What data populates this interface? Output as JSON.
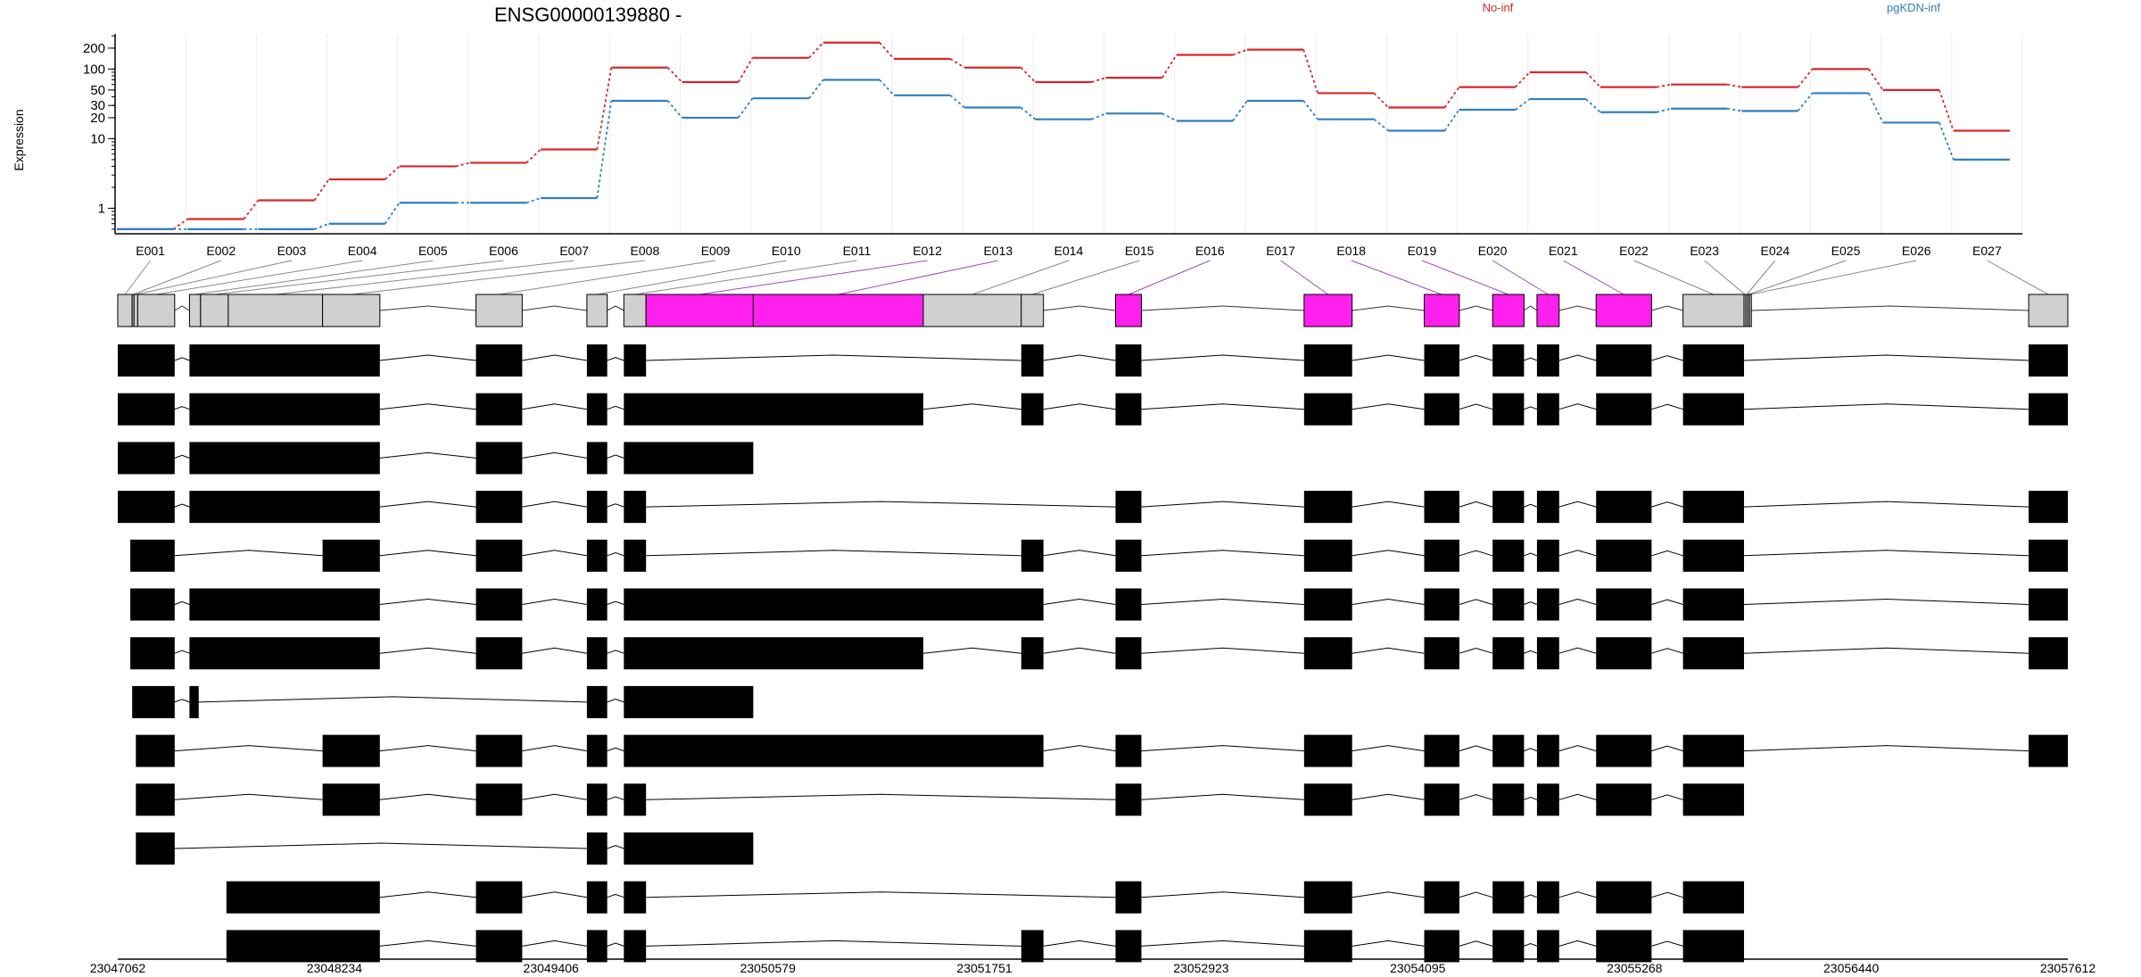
{
  "title": "ENSG00000139880 -",
  "ylabel": "Expression",
  "colors": {
    "No-inf": "#d62728",
    "pgKDN-inf": "#2f7fc1",
    "highlight": "#ff20ee",
    "exon_grey": "#d0d0d0",
    "connector_purple": "#a04ab8",
    "transcript": "#000000"
  },
  "chart_data": {
    "type": "line",
    "title": "ENSG00000139880 -",
    "xlabel": "",
    "ylabel": "Expression",
    "yscale": "log",
    "yticks": [
      1,
      10,
      20,
      30,
      50,
      100,
      200
    ],
    "grid": "vertical",
    "legend_position": "top-right",
    "categories": [
      "E001",
      "E002",
      "E003",
      "E004",
      "E005",
      "E006",
      "E007",
      "E008",
      "E009",
      "E010",
      "E011",
      "E012",
      "E013",
      "E014",
      "E015",
      "E016",
      "E017",
      "E018",
      "E019",
      "E020",
      "E021",
      "E022",
      "E023",
      "E024",
      "E025",
      "E026",
      "E027"
    ],
    "series": [
      {
        "name": "No-inf",
        "color": "#d62728",
        "values": [
          0.5,
          0.7,
          1.3,
          2.6,
          4.0,
          4.5,
          7,
          105,
          65,
          145,
          240,
          140,
          105,
          65,
          75,
          160,
          190,
          45,
          28,
          55,
          90,
          55,
          60,
          55,
          100,
          50,
          13
        ]
      },
      {
        "name": "pgKDN-inf",
        "color": "#2f7fc1",
        "values": [
          0.5,
          0.5,
          0.5,
          0.6,
          1.2,
          1.2,
          1.4,
          35,
          20,
          38,
          70,
          42,
          28,
          19,
          23,
          18,
          35,
          19,
          13,
          26,
          37,
          24,
          27,
          25,
          45,
          17,
          5
        ]
      }
    ]
  },
  "gene_model": {
    "start": 23047062,
    "end": 23057612,
    "coordinate_ticks": [
      "23047062",
      "23048234",
      "23049406",
      "23050579",
      "23051751",
      "23052923",
      "23054095",
      "23055268",
      "23056440",
      "23057612"
    ],
    "exons": [
      {
        "id": "E001",
        "start": 23047062,
        "end": 23047140,
        "highlight": false
      },
      {
        "id": "E002",
        "start": 23047140,
        "end": 23047150,
        "highlight": false
      },
      {
        "id": "E003",
        "start": 23047150,
        "end": 23047170,
        "highlight": false
      },
      {
        "id": "E004",
        "start": 23047170,
        "end": 23047370,
        "highlight": false
      },
      {
        "id": "E005",
        "start": 23047450,
        "end": 23047510,
        "highlight": false
      },
      {
        "id": "E006",
        "start": 23047510,
        "end": 23047660,
        "highlight": false
      },
      {
        "id": "E007",
        "start": 23047660,
        "end": 23048170,
        "highlight": false
      },
      {
        "id": "E008",
        "start": 23048170,
        "end": 23048480,
        "highlight": false
      },
      {
        "id": "E009",
        "start": 23049000,
        "end": 23049250,
        "highlight": false
      },
      {
        "id": "E010",
        "start": 23049600,
        "end": 23049710,
        "highlight": false
      },
      {
        "id": "E011",
        "start": 23049800,
        "end": 23049920,
        "highlight": false
      },
      {
        "id": "E012",
        "start": 23049920,
        "end": 23050500,
        "highlight": true
      },
      {
        "id": "E013",
        "start": 23050500,
        "end": 23051420,
        "highlight": true
      },
      {
        "id": "E014",
        "start": 23051420,
        "end": 23051950,
        "highlight": false
      },
      {
        "id": "E015",
        "start": 23051950,
        "end": 23052070,
        "highlight": false
      },
      {
        "id": "E016",
        "start": 23052460,
        "end": 23052600,
        "highlight": true
      },
      {
        "id": "E017",
        "start": 23053480,
        "end": 23053740,
        "highlight": true
      },
      {
        "id": "E018",
        "start": 23054130,
        "end": 23054320,
        "highlight": true
      },
      {
        "id": "E019",
        "start": 23054500,
        "end": 23054670,
        "highlight": true
      },
      {
        "id": "E020",
        "start": 23054740,
        "end": 23054860,
        "highlight": true
      },
      {
        "id": "E021",
        "start": 23055060,
        "end": 23055360,
        "highlight": true
      },
      {
        "id": "E022",
        "start": 23055530,
        "end": 23055860,
        "highlight": false
      },
      {
        "id": "E023",
        "start": 23055860,
        "end": 23055870,
        "highlight": false
      },
      {
        "id": "E024",
        "start": 23055870,
        "end": 23055880,
        "highlight": false
      },
      {
        "id": "E025",
        "start": 23055880,
        "end": 23055890,
        "highlight": false
      },
      {
        "id": "E026",
        "start": 23055890,
        "end": 23055900,
        "highlight": false
      },
      {
        "id": "E027",
        "start": 23057400,
        "end": 23057612,
        "highlight": false
      }
    ],
    "transcripts": [
      [
        [
          23047062,
          23047370
        ],
        [
          23047450,
          23048480
        ],
        [
          23049000,
          23049250
        ],
        [
          23049600,
          23049710
        ],
        [
          23049800,
          23049920
        ],
        [
          23051950,
          23052070
        ],
        [
          23052460,
          23052600
        ],
        [
          23053480,
          23053740
        ],
        [
          23054130,
          23054320
        ],
        [
          23054500,
          23054670
        ],
        [
          23054740,
          23054860
        ],
        [
          23055060,
          23055360
        ],
        [
          23055530,
          23055860
        ],
        [
          23057400,
          23057612
        ]
      ],
      [
        [
          23047062,
          23047370
        ],
        [
          23047450,
          23048480
        ],
        [
          23049000,
          23049250
        ],
        [
          23049600,
          23049710
        ],
        [
          23049800,
          23051420
        ],
        [
          23051950,
          23052070
        ],
        [
          23052460,
          23052600
        ],
        [
          23053480,
          23053740
        ],
        [
          23054130,
          23054320
        ],
        [
          23054500,
          23054670
        ],
        [
          23054740,
          23054860
        ],
        [
          23055060,
          23055360
        ],
        [
          23055530,
          23055860
        ],
        [
          23057400,
          23057612
        ]
      ],
      [
        [
          23047062,
          23047370
        ],
        [
          23047450,
          23048480
        ],
        [
          23049000,
          23049250
        ],
        [
          23049600,
          23049710
        ],
        [
          23049800,
          23050500
        ]
      ],
      [
        [
          23047062,
          23047370
        ],
        [
          23047450,
          23048480
        ],
        [
          23049000,
          23049250
        ],
        [
          23049600,
          23049710
        ],
        [
          23049800,
          23049920
        ],
        [
          23052460,
          23052600
        ],
        [
          23053480,
          23053740
        ],
        [
          23054130,
          23054320
        ],
        [
          23054500,
          23054670
        ],
        [
          23054740,
          23054860
        ],
        [
          23055060,
          23055360
        ],
        [
          23055530,
          23055860
        ],
        [
          23057400,
          23057612
        ]
      ],
      [
        [
          23047130,
          23047370
        ],
        [
          23048170,
          23048480
        ],
        [
          23049000,
          23049250
        ],
        [
          23049600,
          23049710
        ],
        [
          23049800,
          23049920
        ],
        [
          23051950,
          23052070
        ],
        [
          23052460,
          23052600
        ],
        [
          23053480,
          23053740
        ],
        [
          23054130,
          23054320
        ],
        [
          23054500,
          23054670
        ],
        [
          23054740,
          23054860
        ],
        [
          23055060,
          23055360
        ],
        [
          23055530,
          23055860
        ],
        [
          23057400,
          23057612
        ]
      ],
      [
        [
          23047130,
          23047370
        ],
        [
          23047450,
          23048480
        ],
        [
          23049000,
          23049250
        ],
        [
          23049600,
          23049710
        ],
        [
          23049800,
          23052070
        ],
        [
          23052460,
          23052600
        ],
        [
          23053480,
          23053740
        ],
        [
          23054130,
          23054320
        ],
        [
          23054500,
          23054670
        ],
        [
          23054740,
          23054860
        ],
        [
          23055060,
          23055360
        ],
        [
          23055530,
          23055860
        ],
        [
          23057400,
          23057612
        ]
      ],
      [
        [
          23047130,
          23047370
        ],
        [
          23047450,
          23048480
        ],
        [
          23049000,
          23049250
        ],
        [
          23049600,
          23049710
        ],
        [
          23049800,
          23051420
        ],
        [
          23051950,
          23052070
        ],
        [
          23052460,
          23052600
        ],
        [
          23053480,
          23053740
        ],
        [
          23054130,
          23054320
        ],
        [
          23054500,
          23054670
        ],
        [
          23054740,
          23054860
        ],
        [
          23055060,
          23055360
        ],
        [
          23055530,
          23055860
        ],
        [
          23057400,
          23057612
        ]
      ],
      [
        [
          23047140,
          23047370
        ],
        [
          23047450,
          23047500
        ],
        [
          23049600,
          23049710
        ],
        [
          23049800,
          23050500
        ]
      ],
      [
        [
          23047160,
          23047370
        ],
        [
          23048170,
          23048480
        ],
        [
          23049000,
          23049250
        ],
        [
          23049600,
          23049710
        ],
        [
          23049800,
          23052070
        ],
        [
          23052460,
          23052600
        ],
        [
          23053480,
          23053740
        ],
        [
          23054130,
          23054320
        ],
        [
          23054500,
          23054670
        ],
        [
          23054740,
          23054860
        ],
        [
          23055060,
          23055360
        ],
        [
          23055530,
          23055860
        ],
        [
          23057400,
          23057612
        ]
      ],
      [
        [
          23047160,
          23047370
        ],
        [
          23048170,
          23048480
        ],
        [
          23049000,
          23049250
        ],
        [
          23049600,
          23049710
        ],
        [
          23049800,
          23049920
        ],
        [
          23052460,
          23052600
        ],
        [
          23053480,
          23053740
        ],
        [
          23054130,
          23054320
        ],
        [
          23054500,
          23054670
        ],
        [
          23054740,
          23054860
        ],
        [
          23055060,
          23055360
        ],
        [
          23055530,
          23055860
        ]
      ],
      [
        [
          23047160,
          23047370
        ],
        [
          23049600,
          23049710
        ],
        [
          23049800,
          23050500
        ]
      ],
      [
        [
          23047650,
          23048480
        ],
        [
          23049000,
          23049250
        ],
        [
          23049600,
          23049710
        ],
        [
          23049800,
          23049920
        ],
        [
          23052460,
          23052600
        ],
        [
          23053480,
          23053740
        ],
        [
          23054130,
          23054320
        ],
        [
          23054500,
          23054670
        ],
        [
          23054740,
          23054860
        ],
        [
          23055060,
          23055360
        ],
        [
          23055530,
          23055860
        ]
      ],
      [
        [
          23047650,
          23048480
        ],
        [
          23049000,
          23049250
        ],
        [
          23049600,
          23049710
        ],
        [
          23049800,
          23049920
        ],
        [
          23051950,
          23052070
        ],
        [
          23052460,
          23052600
        ],
        [
          23053480,
          23053740
        ],
        [
          23054130,
          23054320
        ],
        [
          23054500,
          23054670
        ],
        [
          23054740,
          23054860
        ],
        [
          23055060,
          23055360
        ],
        [
          23055530,
          23055860
        ]
      ]
    ]
  }
}
